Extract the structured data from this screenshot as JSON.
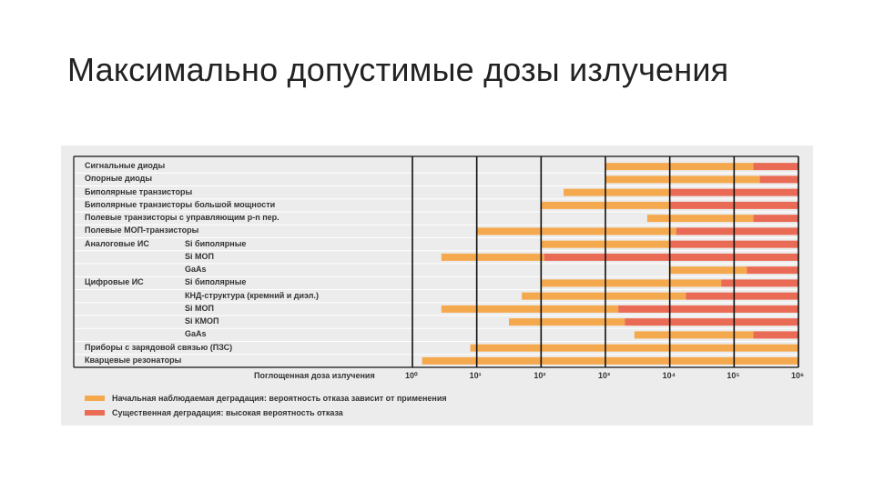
{
  "slide": {
    "title": "Максимально допустимые дозы излучения"
  },
  "chart_data": {
    "type": "bar",
    "orientation": "horizontal-range",
    "x_scale": "log",
    "xlabel": "Поглощенная доза излучения",
    "xlim": [
      0,
      6
    ],
    "xticks": [
      {
        "exp": 0,
        "label": "10⁰"
      },
      {
        "exp": 1,
        "label": "10¹"
      },
      {
        "exp": 2,
        "label": "10²"
      },
      {
        "exp": 3,
        "label": "10³"
      },
      {
        "exp": 4,
        "label": "10⁴"
      },
      {
        "exp": 5,
        "label": "10⁵"
      },
      {
        "exp": 6,
        "label": "10⁶"
      }
    ],
    "colors": {
      "initial": "#f5a94e",
      "significant": "#ea6b55",
      "axis": "#111111",
      "grid_light": "#ffffff"
    },
    "legend": [
      {
        "key": "initial",
        "label": "Начальная наблюдаемая деградация: вероятность отказа зависит от применения"
      },
      {
        "key": "significant",
        "label": "Существенная деградация: высокая вероятность отказа"
      }
    ],
    "rows": [
      {
        "group": "",
        "label": "Сигнальные диоды",
        "start": 3.0,
        "change": 5.3,
        "end": 6.0
      },
      {
        "group": "",
        "label": "Опорные диоды",
        "start": 3.0,
        "change": 5.4,
        "end": 6.0
      },
      {
        "group": "",
        "label": "Биполярные транзисторы",
        "start": 2.35,
        "change": 4.0,
        "end": 6.0
      },
      {
        "group": "",
        "label": "Биполярные транзисторы большой мощности",
        "start": 2.0,
        "change": 4.0,
        "end": 6.0
      },
      {
        "group": "",
        "label": "Полевые транзисторы с управляющим p-n пер.",
        "start": 3.65,
        "change": 5.3,
        "end": 6.0
      },
      {
        "group": "",
        "label": "Полевые МОП-транзисторы",
        "start": 1.0,
        "change": 4.1,
        "end": 6.0
      },
      {
        "group": "Аналоговые ИС",
        "label": "Si биполярные",
        "start": 2.0,
        "change": 4.0,
        "end": 6.0
      },
      {
        "group": "",
        "label": "Si МОП",
        "start": 0.45,
        "change": 2.05,
        "end": 6.0
      },
      {
        "group": "",
        "label": "GaAs",
        "start": 4.0,
        "change": 5.2,
        "end": 6.0
      },
      {
        "group": "Цифровые ИС",
        "label": "Si биполярные",
        "start": 2.0,
        "change": 4.8,
        "end": 6.0
      },
      {
        "group": "",
        "label": "КНД-структура (кремний и диэл.)",
        "start": 1.7,
        "change": 4.25,
        "end": 6.0
      },
      {
        "group": "",
        "label": "Si МОП",
        "start": 0.45,
        "change": 3.2,
        "end": 6.0
      },
      {
        "group": "",
        "label": "Si КМОП",
        "start": 1.5,
        "change": 3.3,
        "end": 6.0
      },
      {
        "group": "",
        "label": "GaAs",
        "start": 3.45,
        "change": 5.3,
        "end": 6.0
      },
      {
        "group": "",
        "label": "Приборы с зарядовой связью (ПЗС)",
        "start": 0.9,
        "change": null,
        "end": 6.0
      },
      {
        "group": "",
        "label": "Кварцевые резонаторы",
        "start": 0.15,
        "change": null,
        "end": 6.0
      }
    ]
  }
}
